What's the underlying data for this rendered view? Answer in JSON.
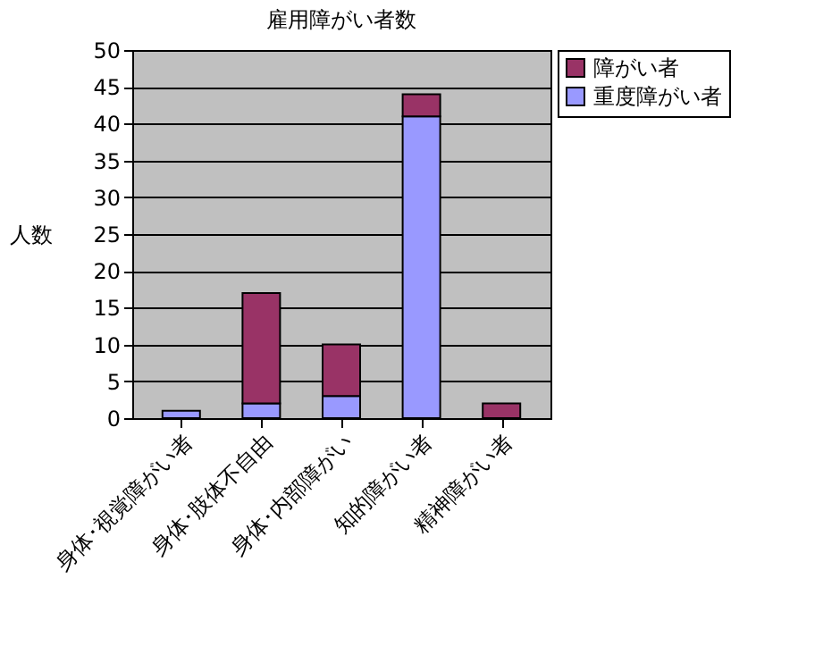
{
  "chart_data": {
    "type": "bar",
    "title": "雇用障がい者数",
    "ylabel": "人数",
    "categories": [
      "身体･視覚障がい者",
      "身体･肢体不自由",
      "身体･内部障がい",
      "知的障がい者",
      "精神障がい者"
    ],
    "stacked": true,
    "series": [
      {
        "name": "重度障がい者",
        "color": "#9999ff",
        "values": [
          1,
          2,
          3,
          41,
          0
        ]
      },
      {
        "name": "障がい者",
        "color": "#993366",
        "values": [
          0,
          15,
          7,
          3,
          2
        ]
      }
    ],
    "ylim": [
      0,
      50
    ],
    "yticks": [
      0,
      5,
      10,
      15,
      20,
      25,
      30,
      35,
      40,
      45,
      50
    ],
    "grid": "y",
    "legend": "right"
  }
}
